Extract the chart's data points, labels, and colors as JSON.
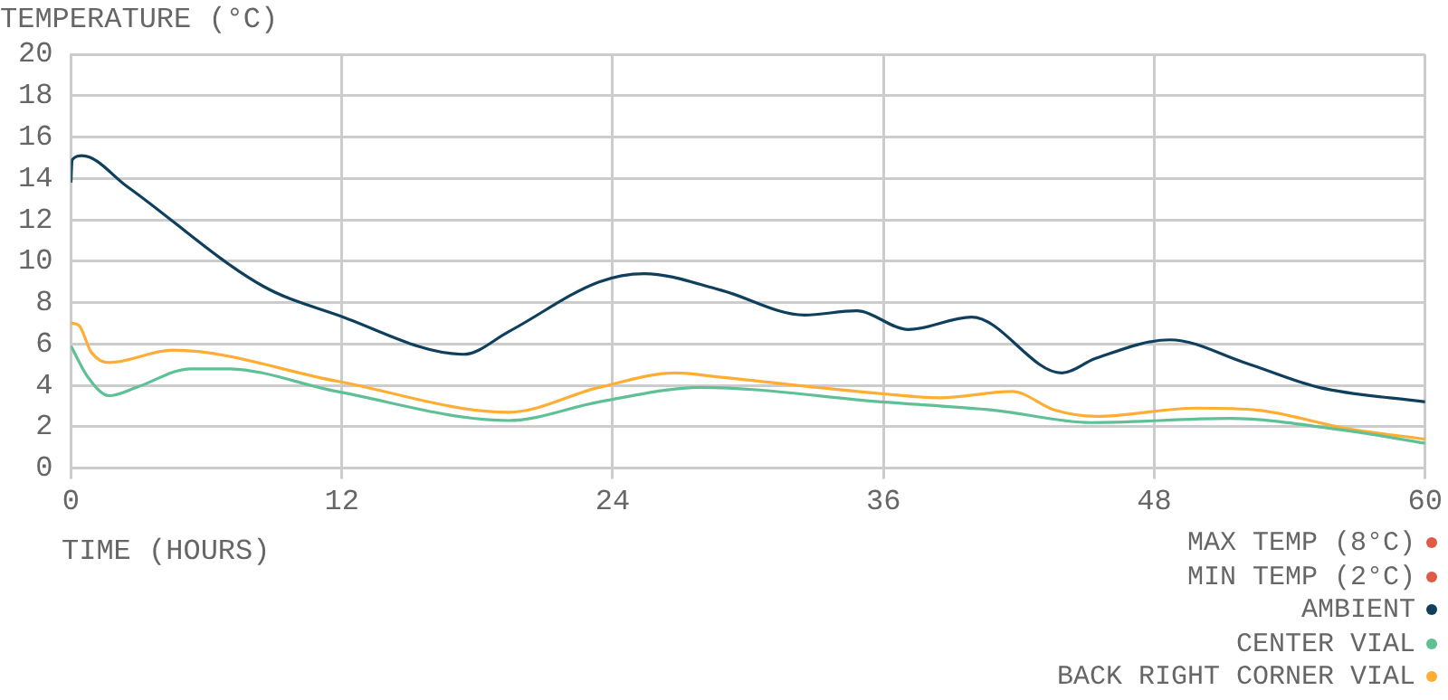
{
  "chart_data": {
    "type": "line",
    "ylabel": "TEMPERATURE (°C)",
    "xlabel": "TIME (HOURS)",
    "xlim": [
      0,
      60
    ],
    "xticks": [
      0,
      12,
      24,
      36,
      48,
      60
    ],
    "ylim": [
      0,
      20
    ],
    "yticks": [
      0,
      2,
      4,
      6,
      8,
      10,
      12,
      14,
      16,
      18,
      20
    ],
    "grid": true,
    "legend": "bottom right",
    "marker": "none",
    "line_style": "solid",
    "series": [
      {
        "name": "MAX TEMP (8°C)",
        "color": "#e05a45"
      },
      {
        "name": "MIN TEMP (2°C)",
        "color": "#e05a45"
      },
      {
        "name": "AMBIENT",
        "color": "#0e3f5c",
        "x": [
          0,
          0.05,
          0.5,
          2.5,
          8.5,
          11.8,
          17.4,
          19.4,
          23.4,
          25.4,
          28.8,
          32.5,
          34.8,
          37.1,
          39.9,
          43.9,
          45.4,
          48.7,
          52,
          55.3,
          60
        ],
        "values": [
          13.8,
          14.9,
          15.1,
          13.6,
          8.8,
          7.4,
          5.5,
          6.6,
          9,
          9.4,
          8.6,
          7.4,
          7.6,
          6.7,
          7.3,
          4.6,
          5.3,
          6.2,
          5.1,
          3.9,
          3.2
        ]
      },
      {
        "name": "CENTER VIAL",
        "color": "#5fc095",
        "x": [
          0,
          0.75,
          1.7,
          2.9,
          5.3,
          6.9,
          11.8,
          19.4,
          23.4,
          27.9,
          35.9,
          40.9,
          45.2,
          51.3,
          56.6,
          60
        ],
        "values": [
          5.9,
          4.4,
          3.5,
          3.9,
          4.8,
          4.8,
          3.7,
          2.3,
          3.2,
          3.9,
          3.2,
          2.8,
          2.2,
          2.4,
          1.8,
          1.2
        ]
      },
      {
        "name": "BACK RIGHT CORNER VIAL",
        "color": "#ffad33",
        "x": [
          0,
          0.35,
          0.9,
          1.7,
          4.5,
          11.8,
          19.4,
          23.4,
          26.8,
          28.7,
          35.9,
          38.5,
          41.7,
          43.6,
          45.4,
          49.9,
          52.6,
          56.6,
          60
        ],
        "values": [
          7,
          6.9,
          5.6,
          5.1,
          5.7,
          4.2,
          2.7,
          3.9,
          4.6,
          4.4,
          3.6,
          3.4,
          3.7,
          2.8,
          2.5,
          2.9,
          2.8,
          1.9,
          1.4
        ]
      }
    ]
  }
}
